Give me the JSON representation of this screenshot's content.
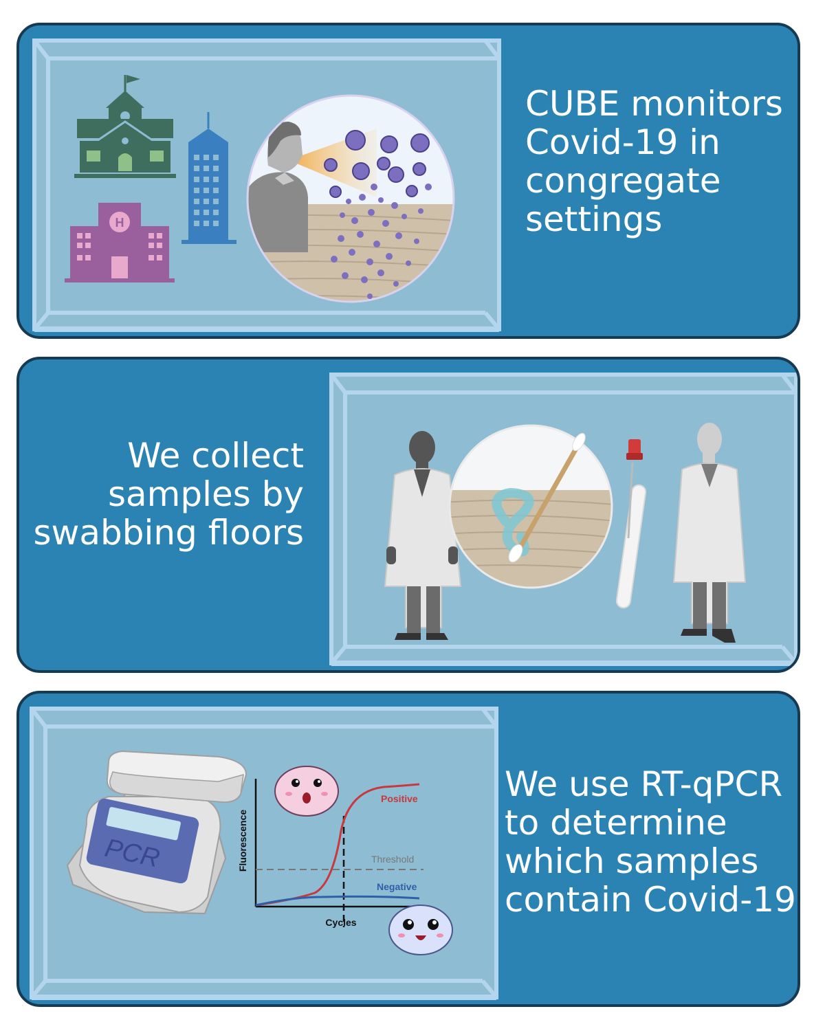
{
  "panels": [
    {
      "caption_lines": [
        "CUBE monitors",
        "Covid-19 in",
        "congregate",
        "settings"
      ]
    },
    {
      "caption_lines": [
        "We collect",
        "samples by",
        "swabbing floors"
      ]
    },
    {
      "caption_lines": [
        "We use RT-qPCR",
        "to determine",
        "which samples",
        "contain Covid-19"
      ]
    }
  ],
  "pcr": {
    "device_label": "PCR",
    "chart": {
      "ylabel": "Fluorescence",
      "xlabel": "Cycles",
      "series": [
        {
          "name": "Positive"
        },
        {
          "name": "Negative"
        }
      ],
      "threshold_label": "Threshold"
    }
  },
  "colors": {
    "panel": "#2b83b3",
    "panel_border": "#153a52",
    "cube_fill": "#8dbcd3",
    "cube_edge": "#b3d6ee",
    "school": "#3f6e5e",
    "hospital": "#9a5f9d",
    "tower": "#3a7fc0",
    "virus": "#7d6fbf",
    "positive": "#c8383c",
    "negative": "#2f5fa8"
  }
}
